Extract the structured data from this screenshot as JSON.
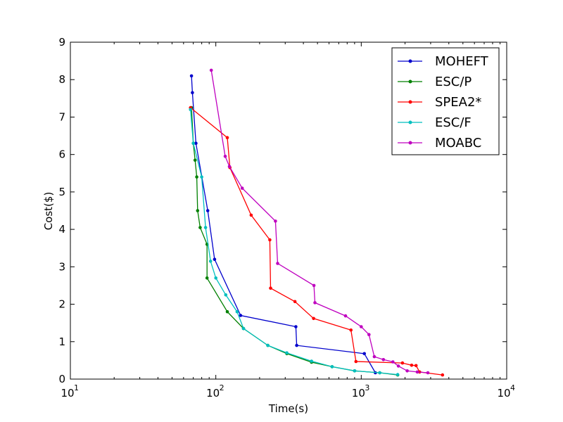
{
  "chart_data": {
    "type": "line",
    "xlabel": "Time(s)",
    "ylabel": "Cost($)",
    "xscale": "log",
    "xlim": [
      10,
      10000
    ],
    "ylim": [
      0,
      9
    ],
    "xticks": [
      {
        "value": 10,
        "base": "10",
        "exp": "1"
      },
      {
        "value": 100,
        "base": "10",
        "exp": "2"
      },
      {
        "value": 1000,
        "base": "10",
        "exp": "3"
      },
      {
        "value": 10000,
        "base": "10",
        "exp": "4"
      }
    ],
    "yticks": [
      "0",
      "1",
      "2",
      "3",
      "4",
      "5",
      "6",
      "7",
      "8",
      "9"
    ],
    "grid": false,
    "legend_position": "top-right",
    "series": [
      {
        "name": "MOHEFT",
        "color": "#0000cc",
        "x": [
          68,
          69,
          73,
          88,
          98,
          148,
          355,
          360,
          1050,
          1250
        ],
        "y": [
          8.1,
          7.65,
          6.3,
          4.5,
          3.2,
          1.7,
          1.4,
          0.9,
          0.68,
          0.17
        ]
      },
      {
        "name": "ESC/P",
        "color": "#008000",
        "x": [
          68,
          70,
          72,
          74,
          75,
          78,
          87,
          87,
          120,
          155,
          228,
          308,
          455,
          630,
          900,
          1340,
          1780
        ],
        "y": [
          7.25,
          6.3,
          5.85,
          5.4,
          4.5,
          4.05,
          3.6,
          2.7,
          1.8,
          1.35,
          0.9,
          0.68,
          0.45,
          0.33,
          0.22,
          0.17,
          0.11
        ]
      },
      {
        "name": "SPEA2*",
        "color": "#ff0000",
        "x": [
          67,
          120,
          125,
          175,
          235,
          238,
          350,
          470,
          850,
          920,
          1920,
          2220,
          2380,
          2520,
          3620
        ],
        "y": [
          7.25,
          6.45,
          5.65,
          4.38,
          3.72,
          2.43,
          2.07,
          1.62,
          1.31,
          0.47,
          0.43,
          0.37,
          0.36,
          0.19,
          0.11
        ]
      },
      {
        "name": "ESC/F",
        "color": "#00bfbf",
        "x": [
          67,
          70,
          80,
          85,
          92,
          100,
          117,
          140,
          155,
          228,
          308,
          455,
          630,
          900,
          1340,
          1780
        ],
        "y": [
          7.2,
          6.3,
          5.4,
          4.05,
          3.15,
          2.7,
          2.25,
          1.8,
          1.35,
          0.9,
          0.7,
          0.48,
          0.33,
          0.22,
          0.17,
          0.12
        ]
      },
      {
        "name": "MOABC",
        "color": "#bf00bf",
        "x": [
          93,
          116,
          124,
          152,
          257,
          266,
          473,
          480,
          780,
          1000,
          1130,
          1230,
          1420,
          1650,
          1800,
          2070,
          2430,
          2870
        ],
        "y": [
          8.25,
          5.95,
          5.68,
          5.1,
          4.22,
          3.09,
          2.5,
          2.04,
          1.69,
          1.4,
          1.19,
          0.6,
          0.52,
          0.46,
          0.35,
          0.22,
          0.19,
          0.17
        ]
      }
    ]
  }
}
